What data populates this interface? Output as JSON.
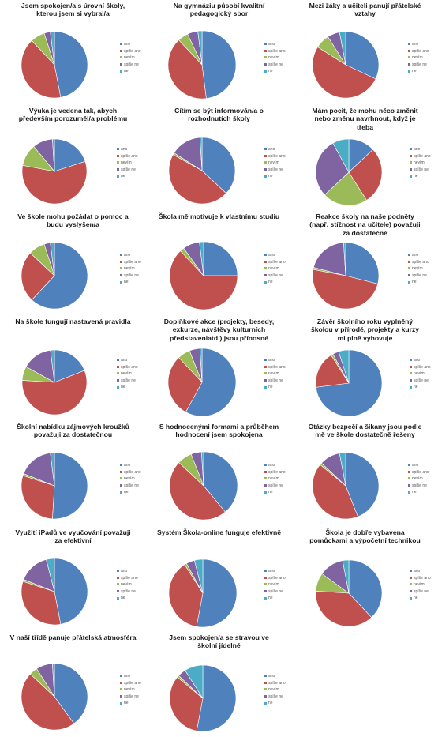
{
  "colors": {
    "ano": "#4f81bd",
    "spise_ano": "#c0504d",
    "nevim": "#9bbb59",
    "spise_ne": "#8064a2",
    "ne": "#4bacc6"
  },
  "legend_labels": [
    "ano",
    "spíše ano",
    "nevím",
    "spíše ne",
    "ne"
  ],
  "chart_data": [
    {
      "type": "pie",
      "title": "Jsem spokojen/a s úrovní školy,\nkterou jsem si vybral/a",
      "categories": [
        "ano",
        "spíše ano",
        "nevím",
        "spíše ne",
        "ne"
      ],
      "values": [
        47,
        41,
        7,
        3,
        2
      ]
    },
    {
      "type": "pie",
      "title": "Na gymnáziu působí kvalitní\npedagogický sbor",
      "categories": [
        "ano",
        "spíše ano",
        "nevím",
        "spíše ne",
        "ne"
      ],
      "values": [
        48,
        40,
        5,
        5,
        2
      ]
    },
    {
      "type": "pie",
      "title": "Mezi žáky a učiteli panují přátelské\nvztahy",
      "categories": [
        "ano",
        "spíše ano",
        "nevím",
        "spíše ne",
        "ne"
      ],
      "values": [
        32,
        52,
        7,
        6,
        3
      ]
    },
    {
      "type": "pie",
      "title": "Výuka je vedena tak, abych\npředevším porozuměl/a problému",
      "categories": [
        "ano",
        "spíše ano",
        "nevím",
        "spíše ne",
        "ne"
      ],
      "values": [
        20,
        58,
        11,
        10,
        1
      ]
    },
    {
      "type": "pie",
      "title": "Cítím se být informován/a o\nrozhodnutích školy",
      "categories": [
        "ano",
        "spíše ano",
        "nevím",
        "spíše ne",
        "ne"
      ],
      "values": [
        37,
        46,
        1,
        15,
        1
      ]
    },
    {
      "type": "pie",
      "title": "Mám pocit, že mohu něco změnit\nnebo změnu navrhnout, když je\ntřeba",
      "categories": [
        "ano",
        "spíše ano",
        "nevím",
        "spíše ne",
        "ne"
      ],
      "values": [
        13,
        28,
        22,
        29,
        8
      ]
    },
    {
      "type": "pie",
      "title": "Ve škole mohu požádat o pomoc a\nbudu vyslyšen/a",
      "categories": [
        "ano",
        "spíše ano",
        "nevím",
        "spíše ne",
        "ne"
      ],
      "values": [
        62,
        25,
        8,
        3,
        2
      ]
    },
    {
      "type": "pie",
      "title": "Škola mě motivuje k vlastnímu studiu",
      "categories": [
        "ano",
        "spíše ano",
        "nevím",
        "spíše ne",
        "ne"
      ],
      "values": [
        25,
        63,
        2,
        8,
        2
      ]
    },
    {
      "type": "pie",
      "title": "Reakce školy na naše podněty\n(např. stížnost na učitele) považuji\nza dostatečné",
      "categories": [
        "ano",
        "spíše ano",
        "nevím",
        "spíše ne",
        "ne"
      ],
      "values": [
        29,
        49,
        1,
        20,
        1
      ]
    },
    {
      "type": "pie",
      "title": "Na škole fungují nastavená pravidla",
      "categories": [
        "ano",
        "spíše ano",
        "nevím",
        "spíše ne",
        "ne"
      ],
      "values": [
        19,
        57,
        7,
        15,
        2
      ]
    },
    {
      "type": "pie",
      "title": "Doplňkové akce (projekty, besedy,\nexkurze, návštěvy kulturních\npředstaveniatd.) jsou přínosné",
      "categories": [
        "ano",
        "spíše ano",
        "nevím",
        "spíše ne",
        "ne"
      ],
      "values": [
        58,
        30,
        6,
        5,
        1
      ]
    },
    {
      "type": "pie",
      "title": "Závěr školního roku vyplněný\nškolou v přírodě, projekty a kurzy\nmi plně vyhovuje",
      "categories": [
        "ano",
        "spíše ano",
        "nevím",
        "spíše ne",
        "ne"
      ],
      "values": [
        73,
        18,
        1,
        3,
        5
      ]
    },
    {
      "type": "pie",
      "title": "Školní nabídku zájmových kroužků\npovažuji za dostatečnou",
      "categories": [
        "ano",
        "spíše ano",
        "nevím",
        "spíše ne",
        "ne"
      ],
      "values": [
        51,
        29,
        1,
        17,
        2
      ]
    },
    {
      "type": "pie",
      "title": "S hodnocenými formami a průběhem\nhodnocení jsem spokojena",
      "categories": [
        "ano",
        "spíše ano",
        "nevím",
        "spíše ne",
        "ne"
      ],
      "values": [
        39,
        48,
        7,
        5,
        1
      ]
    },
    {
      "type": "pie",
      "title": "Otázky bezpečí a šikany jsou podle\nmě ve škole dostatečně řešeny",
      "categories": [
        "ano",
        "spíše ano",
        "nevím",
        "spíše ne",
        "ne"
      ],
      "values": [
        44,
        42,
        1,
        10,
        3
      ]
    },
    {
      "type": "pie",
      "title": "Využití iPadů ve vyučování považuji\nza efektivní",
      "categories": [
        "ano",
        "spíše ano",
        "nevím",
        "spíše ne",
        "ne"
      ],
      "values": [
        47,
        33,
        1,
        15,
        4
      ]
    },
    {
      "type": "pie",
      "title": "Systém Škola-online funguje efektivně",
      "categories": [
        "ano",
        "spíše ano",
        "nevím",
        "spíše ne",
        "ne"
      ],
      "values": [
        53,
        38,
        1,
        4,
        4
      ]
    },
    {
      "type": "pie",
      "title": "Škola je dobře vybavena\npomůckami a výpočetní technikou",
      "categories": [
        "ano",
        "spíše ano",
        "nevím",
        "spíše ne",
        "ne"
      ],
      "values": [
        38,
        38,
        9,
        12,
        3
      ]
    },
    {
      "type": "pie",
      "title": "V naší třídě panuje přátelská atmosféra",
      "categories": [
        "ano",
        "spíše ano",
        "nevím",
        "spíše ne",
        "ne"
      ],
      "values": [
        40,
        47,
        4,
        8,
        1
      ]
    },
    {
      "type": "pie",
      "title": "Jsem spokojen/a se stravou ve\nškolní jídelně",
      "categories": [
        "ano",
        "spíše ano",
        "nevím",
        "spíše ne",
        "ne"
      ],
      "values": [
        53,
        33,
        1,
        4,
        9
      ]
    }
  ]
}
